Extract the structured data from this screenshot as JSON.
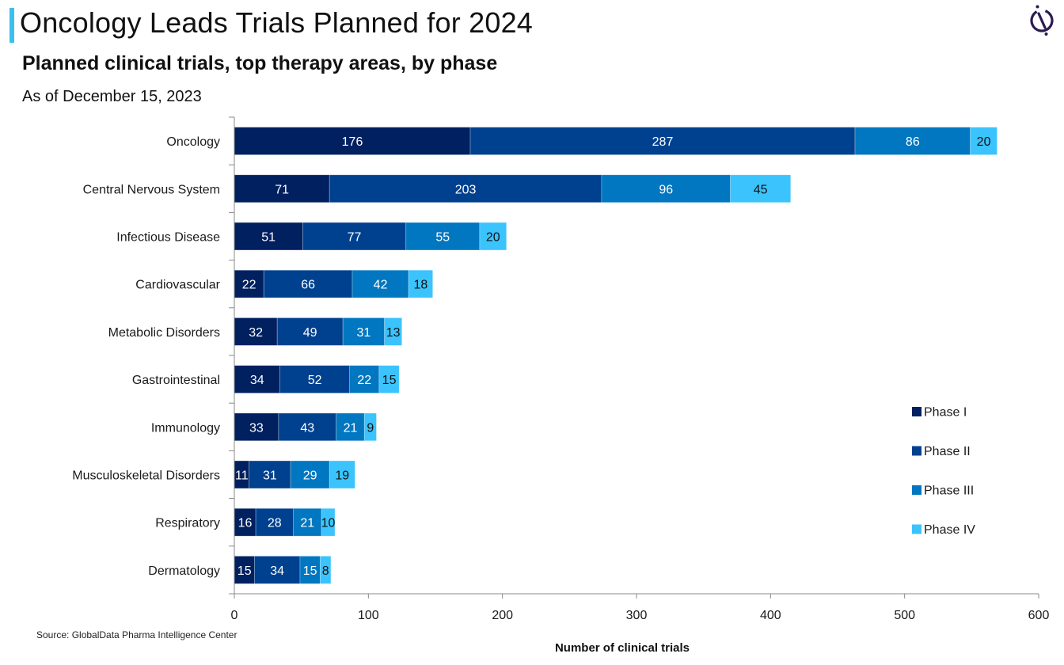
{
  "header": {
    "title": "Oncology Leads Trials Planned for 2024",
    "subtitle": "Planned clinical trials, top therapy areas, by phase",
    "dateline": "As of December 15, 2023",
    "logo_icon": "globaldata-logo-icon",
    "accent_color": "#3bbfef"
  },
  "footer": {
    "source": "Source: GlobalData Pharma Intelligence Center"
  },
  "chart_data": {
    "type": "bar",
    "orientation": "horizontal",
    "stacked": true,
    "title": "Planned clinical trials, top therapy areas, by phase",
    "xlabel": "Number of clinical trials",
    "ylabel": "",
    "xlim": [
      0,
      600
    ],
    "xticks": [
      0,
      100,
      200,
      300,
      400,
      500,
      600
    ],
    "grid": false,
    "legend_position": "right",
    "categories": [
      "Oncology",
      "Central Nervous System",
      "Infectious Disease",
      "Cardiovascular",
      "Metabolic Disorders",
      "Gastrointestinal",
      "Immunology",
      "Musculoskeletal Disorders",
      "Respiratory",
      "Dermatology"
    ],
    "series": [
      {
        "name": "Phase I",
        "color": "#002060",
        "label_color": "#ffffff",
        "values": [
          176,
          71,
          51,
          22,
          32,
          34,
          33,
          11,
          16,
          15
        ]
      },
      {
        "name": "Phase II",
        "color": "#00418f",
        "label_color": "#ffffff",
        "values": [
          287,
          203,
          77,
          66,
          49,
          52,
          43,
          31,
          28,
          34
        ]
      },
      {
        "name": "Phase III",
        "color": "#0077c0",
        "label_color": "#ffffff",
        "values": [
          86,
          96,
          55,
          42,
          31,
          22,
          21,
          29,
          21,
          15
        ]
      },
      {
        "name": "Phase IV",
        "color": "#3bc3fd",
        "label_color": "#111111",
        "values": [
          20,
          45,
          20,
          18,
          13,
          15,
          9,
          19,
          10,
          8
        ]
      }
    ]
  }
}
